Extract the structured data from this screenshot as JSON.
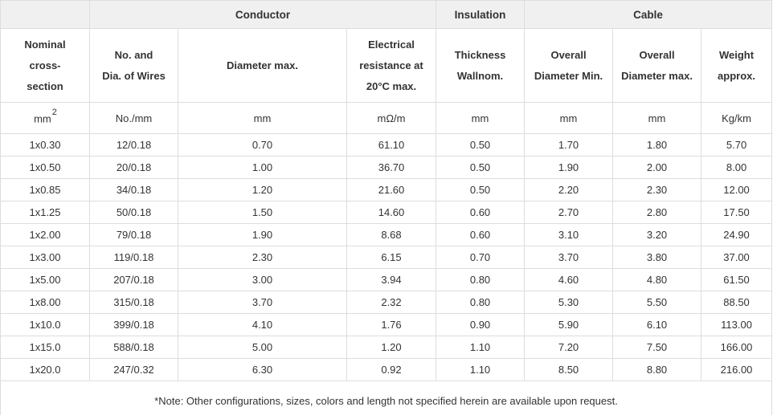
{
  "table": {
    "groups": {
      "spacer": "",
      "conductor": "Conductor",
      "insulation": "Insulation",
      "cable": "Cable"
    },
    "columns": [
      {
        "lines": [
          "Nominal",
          "cross-",
          "section"
        ],
        "unit_base": "mm",
        "unit_sup": "2"
      },
      {
        "lines": [
          "No. and",
          "Dia. of Wires"
        ],
        "unit_base": "No./mm",
        "unit_sup": ""
      },
      {
        "lines": [
          "Diameter max."
        ],
        "unit_base": "mm",
        "unit_sup": ""
      },
      {
        "lines": [
          "Electrical",
          "resistance at",
          "20°C max."
        ],
        "unit_base": "mΩ/m",
        "unit_sup": ""
      },
      {
        "lines": [
          "Thickness",
          "Wallnom."
        ],
        "unit_base": "mm",
        "unit_sup": ""
      },
      {
        "lines": [
          "Overall",
          "Diameter Min."
        ],
        "unit_base": "mm",
        "unit_sup": ""
      },
      {
        "lines": [
          "Overall",
          "Diameter max."
        ],
        "unit_base": "mm",
        "unit_sup": ""
      },
      {
        "lines": [
          "Weight",
          "approx."
        ],
        "unit_base": "Kg/km",
        "unit_sup": ""
      }
    ],
    "rows": [
      [
        "1x0.30",
        "12/0.18",
        "0.70",
        "61.10",
        "0.50",
        "1.70",
        "1.80",
        "5.70"
      ],
      [
        "1x0.50",
        "20/0.18",
        "1.00",
        "36.70",
        "0.50",
        "1.90",
        "2.00",
        "8.00"
      ],
      [
        "1x0.85",
        "34/0.18",
        "1.20",
        "21.60",
        "0.50",
        "2.20",
        "2.30",
        "12.00"
      ],
      [
        "1x1.25",
        "50/0.18",
        "1.50",
        "14.60",
        "0.60",
        "2.70",
        "2.80",
        "17.50"
      ],
      [
        "1x2.00",
        "79/0.18",
        "1.90",
        "8.68",
        "0.60",
        "3.10",
        "3.20",
        "24.90"
      ],
      [
        "1x3.00",
        "119/0.18",
        "2.30",
        "6.15",
        "0.70",
        "3.70",
        "3.80",
        "37.00"
      ],
      [
        "1x5.00",
        "207/0.18",
        "3.00",
        "3.94",
        "0.80",
        "4.60",
        "4.80",
        "61.50"
      ],
      [
        "1x8.00",
        "315/0.18",
        "3.70",
        "2.32",
        "0.80",
        "5.30",
        "5.50",
        "88.50"
      ],
      [
        "1x10.0",
        "399/0.18",
        "4.10",
        "1.76",
        "0.90",
        "5.90",
        "6.10",
        "113.00"
      ],
      [
        "1x15.0",
        "588/0.18",
        "5.00",
        "1.20",
        "1.10",
        "7.20",
        "7.50",
        "166.00"
      ],
      [
        "1x20.0",
        "247/0.32",
        "6.30",
        "0.92",
        "1.10",
        "8.50",
        "8.80",
        "216.00"
      ]
    ],
    "note": "*Note: Other configurations, sizes, colors and length not specified herein are available upon request.",
    "colors": {
      "header_bg": "#f0f0f0",
      "border": "#dddddd",
      "text": "#333333",
      "note_text": "#2e75b6"
    }
  }
}
